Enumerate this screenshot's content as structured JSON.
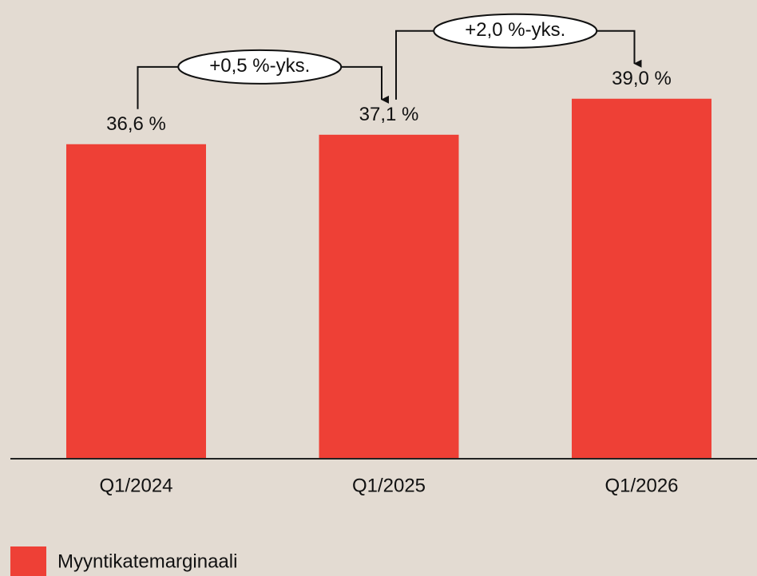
{
  "chart_data": {
    "type": "bar",
    "categories": [
      "Q1/2024",
      "Q1/2025",
      "Q1/2026"
    ],
    "series": [
      {
        "name": "Myyntikatemarginaali",
        "color": "#ee4036",
        "values": [
          36.6,
          37.1,
          39.0
        ],
        "value_labels": [
          "36,6 %",
          "37,1 %",
          "39,0 %"
        ]
      }
    ],
    "annotations": [
      "+0,5 %-yks.",
      "+2,0 %-yks."
    ],
    "ylim": [
      20,
      40
    ]
  }
}
